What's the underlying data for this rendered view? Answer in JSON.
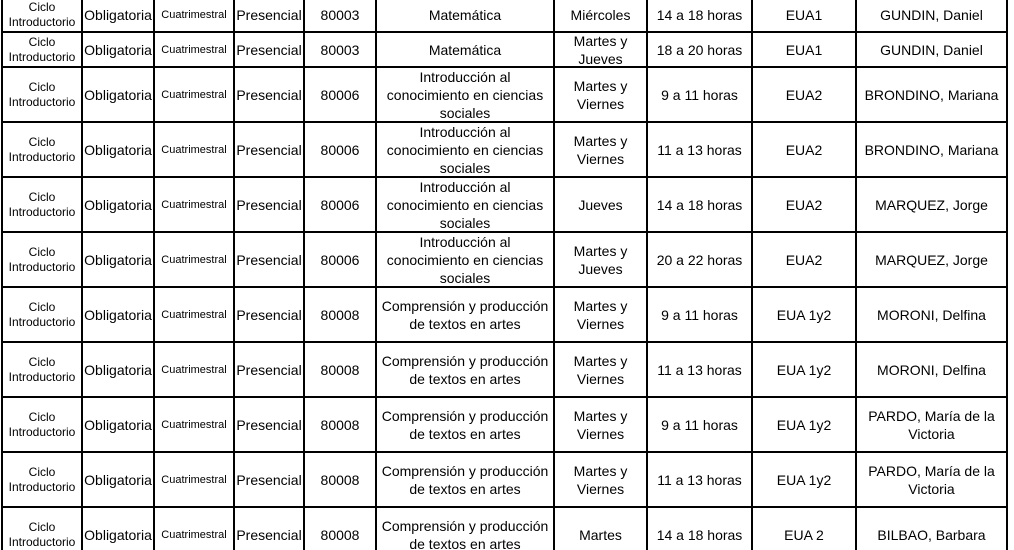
{
  "table": {
    "rows": [
      [
        "Ciclo Introductorio",
        "Obligatoria",
        "Cuatrimestral",
        "Presencial",
        "80003",
        "Matemática",
        "Miércoles",
        "14 a 18 horas",
        "EUA1",
        "GUNDIN, Daniel"
      ],
      [
        "Ciclo Introductorio",
        "Obligatoria",
        "Cuatrimestral",
        "Presencial",
        "80003",
        "Matemática",
        "Martes y Jueves",
        "18 a 20 horas",
        "EUA1",
        "GUNDIN, Daniel"
      ],
      [
        "Ciclo Introductorio",
        "Obligatoria",
        "Cuatrimestral",
        "Presencial",
        "80006",
        "Introducción al conocimiento en ciencias sociales",
        "Martes y Viernes",
        "9 a 11 horas",
        "EUA2",
        "BRONDINO, Mariana"
      ],
      [
        "Ciclo Introductorio",
        "Obligatoria",
        "Cuatrimestral",
        "Presencial",
        "80006",
        "Introducción al conocimiento en ciencias sociales",
        "Martes y Viernes",
        "11 a 13 horas",
        "EUA2",
        "BRONDINO, Mariana"
      ],
      [
        "Ciclo Introductorio",
        "Obligatoria",
        "Cuatrimestral",
        "Presencial",
        "80006",
        "Introducción al conocimiento en ciencias sociales",
        "Jueves",
        "14 a 18 horas",
        "EUA2",
        "MARQUEZ, Jorge"
      ],
      [
        "Ciclo Introductorio",
        "Obligatoria",
        "Cuatrimestral",
        "Presencial",
        "80006",
        "Introducción al conocimiento en ciencias sociales",
        "Martes y Jueves",
        "20 a 22 horas",
        "EUA2",
        "MARQUEZ, Jorge"
      ],
      [
        "Ciclo Introductorio",
        "Obligatoria",
        "Cuatrimestral",
        "Presencial",
        "80008",
        "Comprensión y producción de textos en artes",
        "Martes y Viernes",
        "9 a 11 horas",
        "EUA 1y2",
        "MORONI, Delfina"
      ],
      [
        "Ciclo Introductorio",
        "Obligatoria",
        "Cuatrimestral",
        "Presencial",
        "80008",
        "Comprensión y producción de textos en artes",
        "Martes y Viernes",
        "11 a 13 horas",
        "EUA 1y2",
        "MORONI, Delfina"
      ],
      [
        "Ciclo Introductorio",
        "Obligatoria",
        "Cuatrimestral",
        "Presencial",
        "80008",
        "Comprensión y producción de textos en artes",
        "Martes y Viernes",
        "9 a 11 horas",
        "EUA 1y2",
        "PARDO, María de la Victoria"
      ],
      [
        "Ciclo Introductorio",
        "Obligatoria",
        "Cuatrimestral",
        "Presencial",
        "80008",
        "Comprensión y producción de textos en artes",
        "Martes y Viernes",
        "11 a 13 horas",
        "EUA 1y2",
        "PARDO, María de la Victoria"
      ],
      [
        "Ciclo Introductorio",
        "Obligatoria",
        "Cuatrimestral",
        "Presencial",
        "80008",
        "Comprensión y producción de textos en artes",
        "Martes",
        "14 a 18 horas",
        "EUA 2",
        "BILBAO, Barbara"
      ]
    ]
  }
}
